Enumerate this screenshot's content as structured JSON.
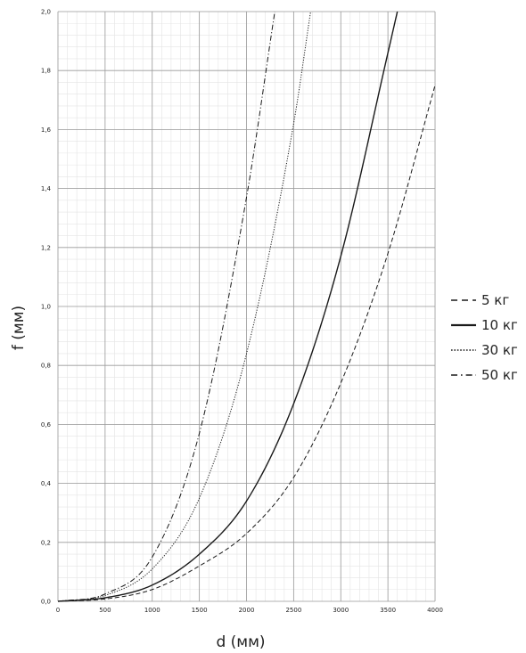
{
  "chart_data": {
    "type": "line",
    "xlabel": "d (мм)",
    "ylabel": "f (мм)",
    "xlim": [
      0,
      4000
    ],
    "ylim": [
      0,
      2.0
    ],
    "x_ticks": [
      0,
      500,
      1000,
      1500,
      2000,
      2500,
      3000,
      3500,
      4000
    ],
    "x_tick_labels": [
      "0",
      "500",
      "1000",
      "1500",
      "2000",
      "2500",
      "3000",
      "3500",
      "4000"
    ],
    "y_ticks": [
      0,
      0.2,
      0.4,
      0.6,
      0.8,
      1.0,
      1.2,
      1.4,
      1.6,
      1.8,
      2.0
    ],
    "y_tick_labels": [
      "0,0",
      "0,2",
      "0,4",
      "0,6",
      "0,8",
      "1,0",
      "1,2",
      "1,4",
      "1,6",
      "1,8",
      "2,0"
    ],
    "grid": true,
    "minor_grid": true,
    "legend_position": "right",
    "series": [
      {
        "name": "5 кг",
        "style": "dashed",
        "x": [
          0,
          500,
          1000,
          1500,
          2000,
          2500,
          3000,
          3500,
          4000
        ],
        "y": [
          0,
          0.008,
          0.04,
          0.12,
          0.23,
          0.42,
          0.74,
          1.18,
          1.75
        ]
      },
      {
        "name": "10 кг",
        "style": "solid",
        "x": [
          0,
          500,
          1000,
          1500,
          2000,
          2500,
          3000,
          3500,
          3600
        ],
        "y": [
          0,
          0.012,
          0.055,
          0.16,
          0.34,
          0.67,
          1.17,
          1.86,
          2.0
        ]
      },
      {
        "name": "30 кг",
        "style": "dotted",
        "x": [
          0,
          500,
          1000,
          1500,
          2000,
          2500,
          2680
        ],
        "y": [
          0,
          0.02,
          0.11,
          0.35,
          0.84,
          1.62,
          2.0
        ]
      },
      {
        "name": "50 кг",
        "style": "dashdot",
        "x": [
          0,
          500,
          1000,
          1500,
          2000,
          2300
        ],
        "y": [
          0,
          0.025,
          0.15,
          0.57,
          1.37,
          2.0
        ]
      }
    ]
  },
  "colors": {
    "line": "#1a1a1a",
    "major_grid": "#9a9a9a",
    "minor_grid": "#e4e4e4"
  }
}
